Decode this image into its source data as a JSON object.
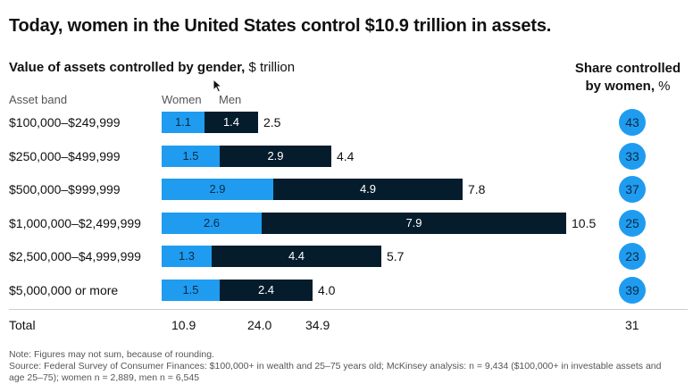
{
  "headline": "Today, women in the United States control $10.9 trillion in assets.",
  "subtitle_bold": "Value of assets controlled by gender,",
  "subtitle_unit": " $ trillion",
  "share_head_bold": "Share controlled",
  "share_head_line2_bold": "by women,",
  "share_head_unit": " %",
  "column_labels": {
    "asset_band": "Asset band",
    "women": "Women",
    "men": "Men"
  },
  "chart_data": {
    "type": "bar",
    "stacked": true,
    "orientation": "horizontal",
    "categories": [
      "$100,000–$249,999",
      "$250,000–$499,999",
      "$500,000–$999,999",
      "$1,000,000–$2,499,999",
      "$2,500,000–$4,999,999",
      "$5,000,000 or more"
    ],
    "series": [
      {
        "name": "Women",
        "values": [
          1.1,
          1.5,
          2.9,
          2.6,
          1.3,
          1.5
        ],
        "labels": [
          "1.1",
          "1.5",
          "2.9",
          "2.6",
          "1.3",
          "1.5"
        ],
        "color": "#1f9cf0"
      },
      {
        "name": "Men",
        "values": [
          1.4,
          2.9,
          4.9,
          7.9,
          4.4,
          2.4
        ],
        "labels": [
          "1.4",
          "2.9",
          "4.9",
          "7.9",
          "4.4",
          "2.4"
        ],
        "color": "#051c2c"
      }
    ],
    "totals": [
      "2.5",
      "4.4",
      "7.8",
      "10.5",
      "5.7",
      "4.0"
    ],
    "share_women": [
      "43",
      "33",
      "37",
      "25",
      "23",
      "39"
    ],
    "total_row": {
      "label": "Total",
      "women": "10.9",
      "men": "24.0",
      "all": "34.9",
      "share": "31"
    },
    "xlim": [
      0,
      10.5
    ]
  },
  "note": "Note: Figures may not sum, because of rounding.",
  "source": "Source: Federal Survey of Consumer Finances: $100,000+ in wealth and 25–75 years old; McKinsey analysis: n = 9,434 ($100,000+ in investable assets and age 25–75); women n = 2,889, men n = 6,545"
}
